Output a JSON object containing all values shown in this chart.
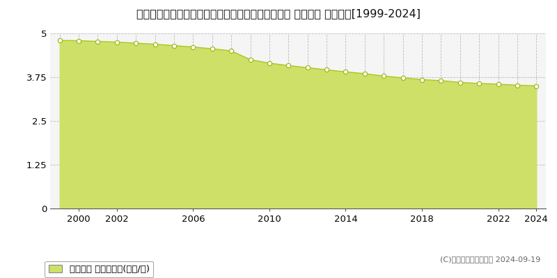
{
  "title": "山形県最上郡最上町大字向町字町浦６４番５外５筆 基準地価 地価推移[1999-2024]",
  "years": [
    1999,
    2000,
    2001,
    2002,
    2003,
    2004,
    2005,
    2006,
    2007,
    2008,
    2009,
    2010,
    2011,
    2012,
    2013,
    2014,
    2015,
    2016,
    2017,
    2018,
    2019,
    2020,
    2021,
    2022,
    2023,
    2024
  ],
  "values": [
    4.8,
    4.79,
    4.77,
    4.75,
    4.72,
    4.69,
    4.65,
    4.61,
    4.56,
    4.5,
    4.25,
    4.15,
    4.08,
    4.02,
    3.96,
    3.9,
    3.85,
    3.78,
    3.73,
    3.68,
    3.65,
    3.6,
    3.57,
    3.55,
    3.52,
    3.5
  ],
  "line_color": "#a8c820",
  "fill_color": "#cfe068",
  "marker_color": "#ffffff",
  "marker_edge_color": "#a0b818",
  "background_color": "#ffffff",
  "plot_bg_color": "#f5f5f5",
  "grid_color": "#bbbbbb",
  "ylim": [
    0,
    5
  ],
  "yticks": [
    0,
    1.25,
    2.5,
    3.75,
    5
  ],
  "ytick_labels": [
    "0",
    "1.25",
    "2.5",
    "3.75",
    "5"
  ],
  "xticks_major": [
    2000,
    2002,
    2006,
    2010,
    2014,
    2018,
    2022,
    2024
  ],
  "xticks_grid_all": [
    1999,
    2000,
    2001,
    2002,
    2003,
    2004,
    2005,
    2006,
    2007,
    2008,
    2009,
    2010,
    2011,
    2012,
    2013,
    2014,
    2015,
    2016,
    2017,
    2018,
    2019,
    2020,
    2021,
    2022,
    2023,
    2024
  ],
  "xlim_start": 1998.5,
  "xlim_end": 2024.5,
  "legend_label": "基準地価 平均坪単価(万円/坪)",
  "copyright_text": "(C)土地価格ドットコム 2024-09-19",
  "title_fontsize": 11.5,
  "tick_fontsize": 9.5,
  "legend_fontsize": 9.5,
  "copyright_fontsize": 8
}
